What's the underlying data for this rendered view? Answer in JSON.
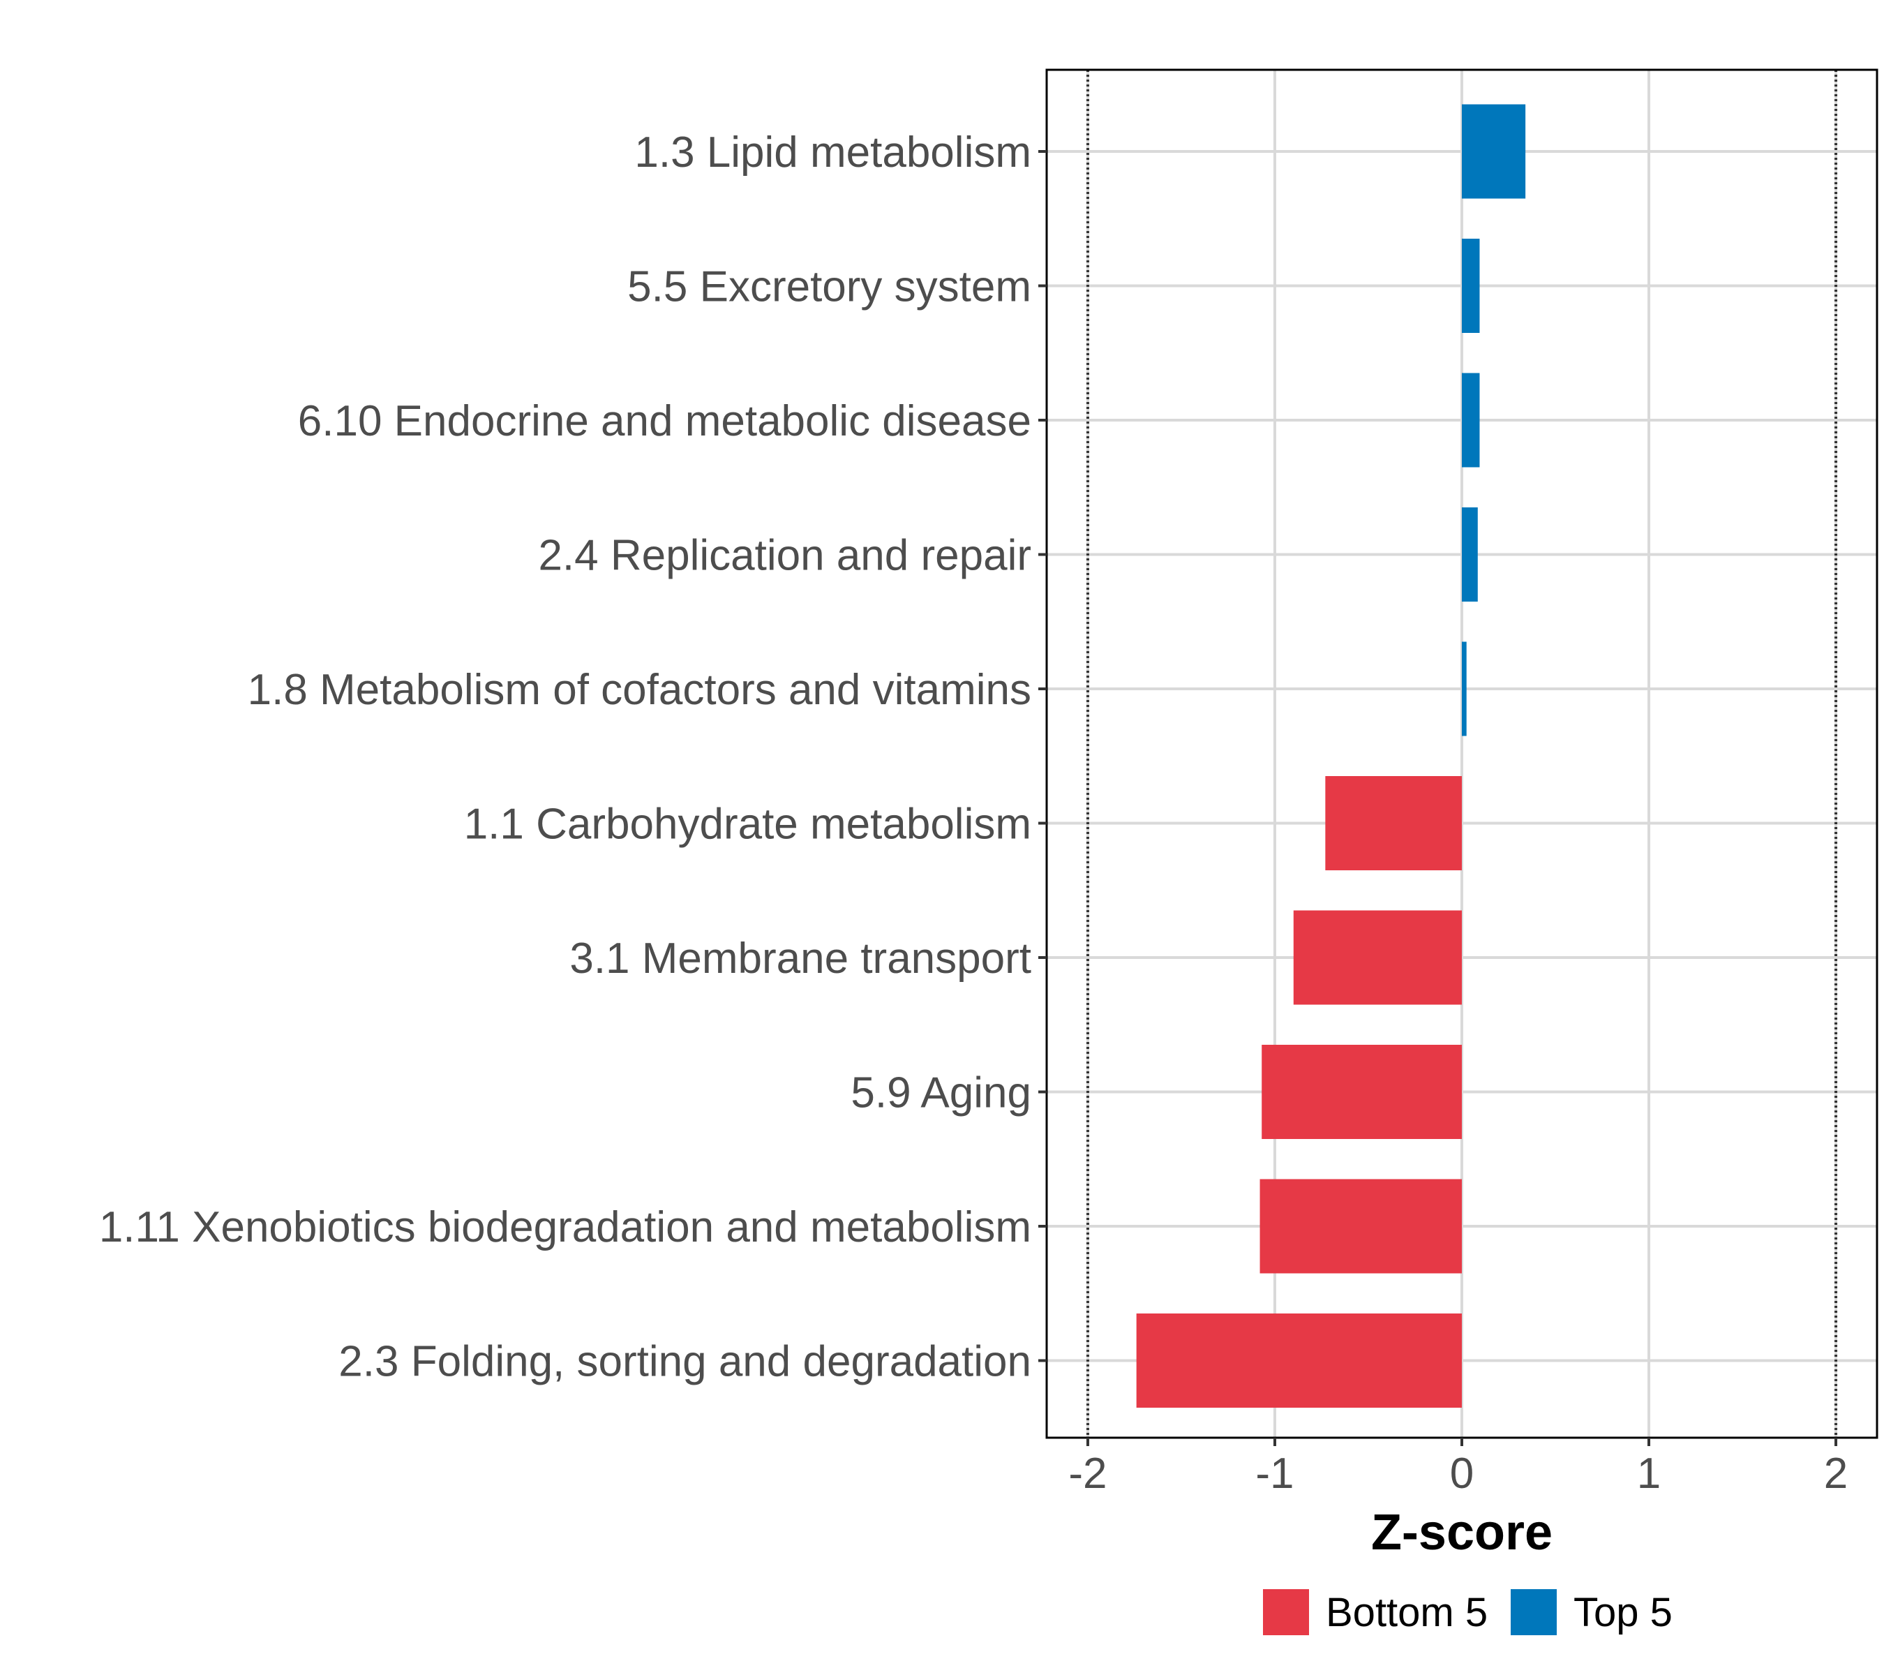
{
  "chart_data": {
    "type": "bar",
    "orientation": "horizontal",
    "categories": [
      "1.3 Lipid metabolism",
      "5.5 Excretory system",
      "6.10 Endocrine and metabolic disease",
      "2.4 Replication and repair",
      "1.8 Metabolism of cofactors and vitamins",
      "1.1 Carbohydrate metabolism",
      "3.1 Membrane transport",
      "5.9 Aging",
      "1.11 Xenobiotics biodegradation and metabolism",
      "2.3 Folding, sorting and degradation"
    ],
    "values": [
      0.34,
      0.095,
      0.095,
      0.085,
      0.025,
      -0.73,
      -0.9,
      -1.07,
      -1.08,
      -1.74
    ],
    "groups": [
      "Top 5",
      "Top 5",
      "Top 5",
      "Top 5",
      "Top 5",
      "Bottom 5",
      "Bottom 5",
      "Bottom 5",
      "Bottom 5",
      "Bottom 5"
    ],
    "xlabel": "Z-score",
    "ylabel": "",
    "xlim": [
      -2.22,
      2.22
    ],
    "xticks": [
      -2,
      -1,
      0,
      1,
      2
    ],
    "xtick_labels": [
      "-2",
      "-1",
      "0",
      "1",
      "2"
    ],
    "reference_lines": [
      -2,
      2
    ],
    "grid": true,
    "legend": {
      "position": "bottom",
      "items": [
        {
          "label": "Bottom 5",
          "color": "#e63946"
        },
        {
          "label": "Top 5",
          "color": "#0077bb"
        }
      ]
    },
    "colors": {
      "Bottom 5": "#e63946",
      "Top 5": "#0077bb"
    }
  }
}
